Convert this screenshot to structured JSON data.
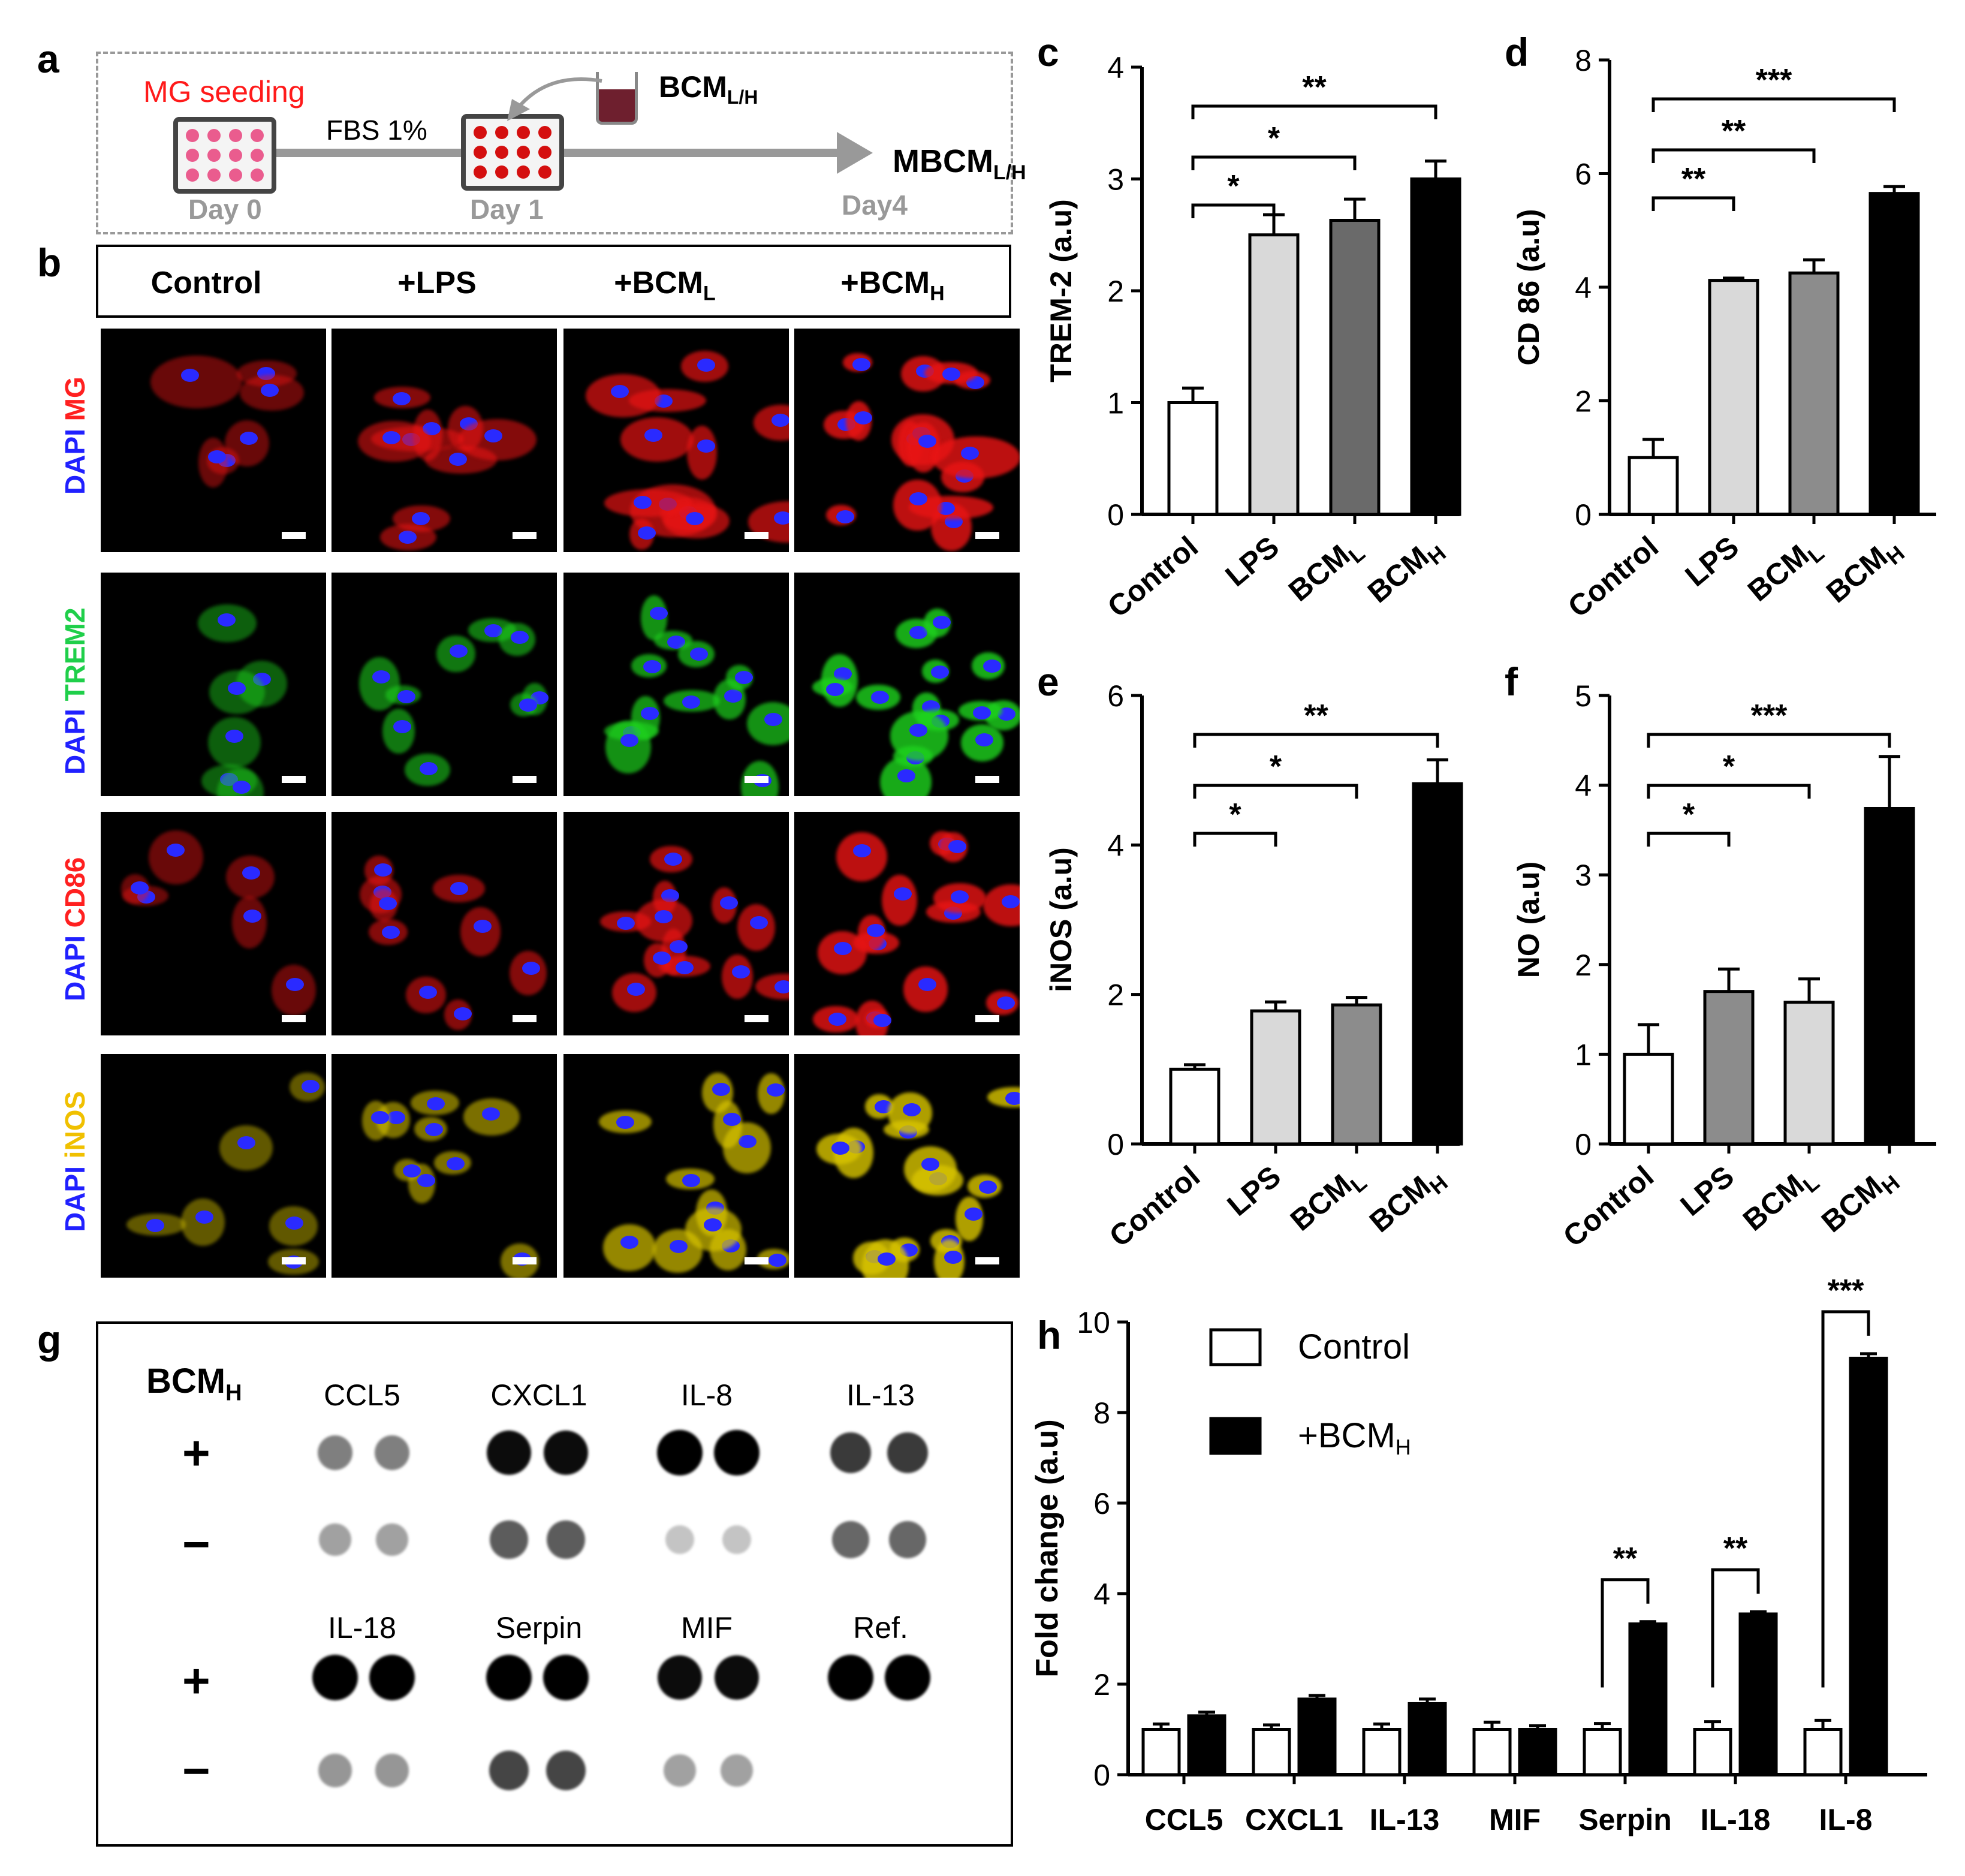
{
  "panel_labels": {
    "a": "a",
    "b": "b",
    "c": "c",
    "d": "d",
    "e": "e",
    "f": "f",
    "g": "g",
    "h": "h"
  },
  "schematic": {
    "seeding_label": "MG seeding",
    "medium_label": "FBS 1%",
    "reagent_label": "BCM",
    "reagent_sub": "L/H",
    "product_label": "MBCM",
    "product_sub": "L/H",
    "day0": "Day 0",
    "day1": "Day 1",
    "day4": "Day4",
    "colors": {
      "seeding_text": "#ff1a1a",
      "day_text": "#999999",
      "arrow": "#999999",
      "wells_day0": "#ea5c8e",
      "wells_day1": "#d40f0f",
      "beaker": "#6e1f2e"
    }
  },
  "conditions": [
    {
      "label": "Control",
      "sub": ""
    },
    {
      "label": "+LPS",
      "sub": ""
    },
    {
      "label": "+BCM",
      "sub": "L"
    },
    {
      "label": "+BCM",
      "sub": "H"
    }
  ],
  "stain_rows": [
    {
      "dapi": "DAPI ",
      "marker": "MG",
      "marker_color": "#ff2020",
      "cell_color": "#e81414"
    },
    {
      "dapi": "DAPI ",
      "marker": "TREM2",
      "marker_color": "#1fcf4a",
      "cell_color": "#1ed21e"
    },
    {
      "dapi": "DAPI ",
      "marker": "CD86",
      "marker_color": "#ff2020",
      "cell_color": "#e81414"
    },
    {
      "dapi": "DAPI ",
      "marker": "iNOS",
      "marker_color": "#f0c000",
      "cell_color": "#d8c400"
    }
  ],
  "dapi_color": "#2020ff",
  "blot": {
    "row_header": "BCM",
    "row_header_sub": "H",
    "plus": "+",
    "minus": "−",
    "top_names": [
      "CCL5",
      "CXCL1",
      "IL-8",
      "IL-13"
    ],
    "bottom_names": [
      "IL-18",
      "Serpin",
      "MIF",
      "Ref."
    ],
    "top_plus_intensity": [
      0.45,
      0.95,
      1.0,
      0.75
    ],
    "top_minus_intensity": [
      0.3,
      0.6,
      0.15,
      0.55
    ],
    "bottom_plus_intensity": [
      1.0,
      1.0,
      0.95,
      1.0
    ],
    "bottom_minus_intensity": [
      0.35,
      0.7,
      0.3,
      0.0
    ]
  },
  "chart_data": [
    {
      "id": "c",
      "type": "bar",
      "ylabel": "TREM-2 (a.u)",
      "categories": [
        "Control",
        "LPS",
        "BCM",
        "BCM"
      ],
      "category_subs": [
        "",
        "",
        "L",
        "H"
      ],
      "values": [
        1.0,
        2.5,
        2.63,
        3.0
      ],
      "errors": [
        0.13,
        0.18,
        0.19,
        0.16
      ],
      "colors": [
        "#ffffff",
        "#d9d9d9",
        "#6a6a6a",
        "#000000"
      ],
      "ylim": [
        0,
        4
      ],
      "yticks": [
        0,
        1,
        2,
        3,
        4
      ],
      "significance": [
        {
          "from": 0,
          "to": 1,
          "label": "*"
        },
        {
          "from": 0,
          "to": 2,
          "label": "*"
        },
        {
          "from": 0,
          "to": 3,
          "label": "**"
        }
      ]
    },
    {
      "id": "d",
      "type": "bar",
      "ylabel": "CD 86 (a.u)",
      "categories": [
        "Control",
        "LPS",
        "BCM",
        "BCM"
      ],
      "category_subs": [
        "",
        "",
        "L",
        "H"
      ],
      "values": [
        1.0,
        4.12,
        4.25,
        5.65
      ],
      "errors": [
        0.32,
        0.04,
        0.23,
        0.12
      ],
      "colors": [
        "#ffffff",
        "#d9d9d9",
        "#8c8c8c",
        "#000000"
      ],
      "ylim": [
        0,
        8
      ],
      "yticks": [
        0,
        2,
        4,
        6,
        8
      ],
      "significance": [
        {
          "from": 0,
          "to": 1,
          "label": "**"
        },
        {
          "from": 0,
          "to": 2,
          "label": "**"
        },
        {
          "from": 0,
          "to": 3,
          "label": "***"
        }
      ]
    },
    {
      "id": "e",
      "type": "bar",
      "ylabel": "iNOS (a.u)",
      "categories": [
        "Control",
        "LPS",
        "BCM",
        "BCM"
      ],
      "category_subs": [
        "",
        "",
        "L",
        "H"
      ],
      "values": [
        1.0,
        1.78,
        1.86,
        4.82
      ],
      "errors": [
        0.06,
        0.12,
        0.1,
        0.32
      ],
      "colors": [
        "#ffffff",
        "#d9d9d9",
        "#8c8c8c",
        "#000000"
      ],
      "ylim": [
        0,
        6
      ],
      "yticks": [
        0,
        2,
        4,
        6
      ],
      "significance": [
        {
          "from": 0,
          "to": 1,
          "label": "*"
        },
        {
          "from": 0,
          "to": 2,
          "label": "*"
        },
        {
          "from": 0,
          "to": 3,
          "label": "**"
        }
      ]
    },
    {
      "id": "f",
      "type": "bar",
      "ylabel": "NO (a.u)",
      "categories": [
        "Control",
        "LPS",
        "BCM",
        "BCM"
      ],
      "category_subs": [
        "",
        "",
        "L",
        "H"
      ],
      "values": [
        1.0,
        1.7,
        1.58,
        3.74
      ],
      "errors": [
        0.33,
        0.25,
        0.26,
        0.58
      ],
      "colors": [
        "#ffffff",
        "#8c8c8c",
        "#d9d9d9",
        "#000000"
      ],
      "ylim": [
        0,
        5
      ],
      "yticks": [
        0,
        1,
        2,
        3,
        4,
        5
      ],
      "significance": [
        {
          "from": 0,
          "to": 1,
          "label": "*"
        },
        {
          "from": 0,
          "to": 2,
          "label": "*"
        },
        {
          "from": 0,
          "to": 3,
          "label": "***"
        }
      ]
    },
    {
      "id": "h",
      "type": "bar",
      "ylabel": "Fold change (a.u)",
      "categories": [
        "CCL5",
        "CXCL1",
        "IL-13",
        "MIF",
        "Serpin",
        "IL-18",
        "IL-8"
      ],
      "series": [
        {
          "name": "Control",
          "values": [
            1.0,
            1.0,
            1.0,
            1.0,
            1.0,
            1.0,
            1.0
          ],
          "errors": [
            0.12,
            0.1,
            0.12,
            0.16,
            0.13,
            0.17,
            0.2
          ],
          "color": "#ffffff"
        },
        {
          "name": "+BCM",
          "name_sub": "H",
          "values": [
            1.3,
            1.67,
            1.57,
            1.0,
            3.33,
            3.55,
            9.2
          ],
          "errors": [
            0.08,
            0.08,
            0.1,
            0.08,
            0.05,
            0.05,
            0.1
          ],
          "color": "#000000"
        }
      ],
      "ylim": [
        0,
        10
      ],
      "yticks": [
        0,
        2,
        4,
        6,
        8,
        10
      ],
      "significance": [
        {
          "category": 4,
          "label": "**"
        },
        {
          "category": 5,
          "label": "**"
        },
        {
          "category": 6,
          "label": "***"
        }
      ]
    }
  ]
}
